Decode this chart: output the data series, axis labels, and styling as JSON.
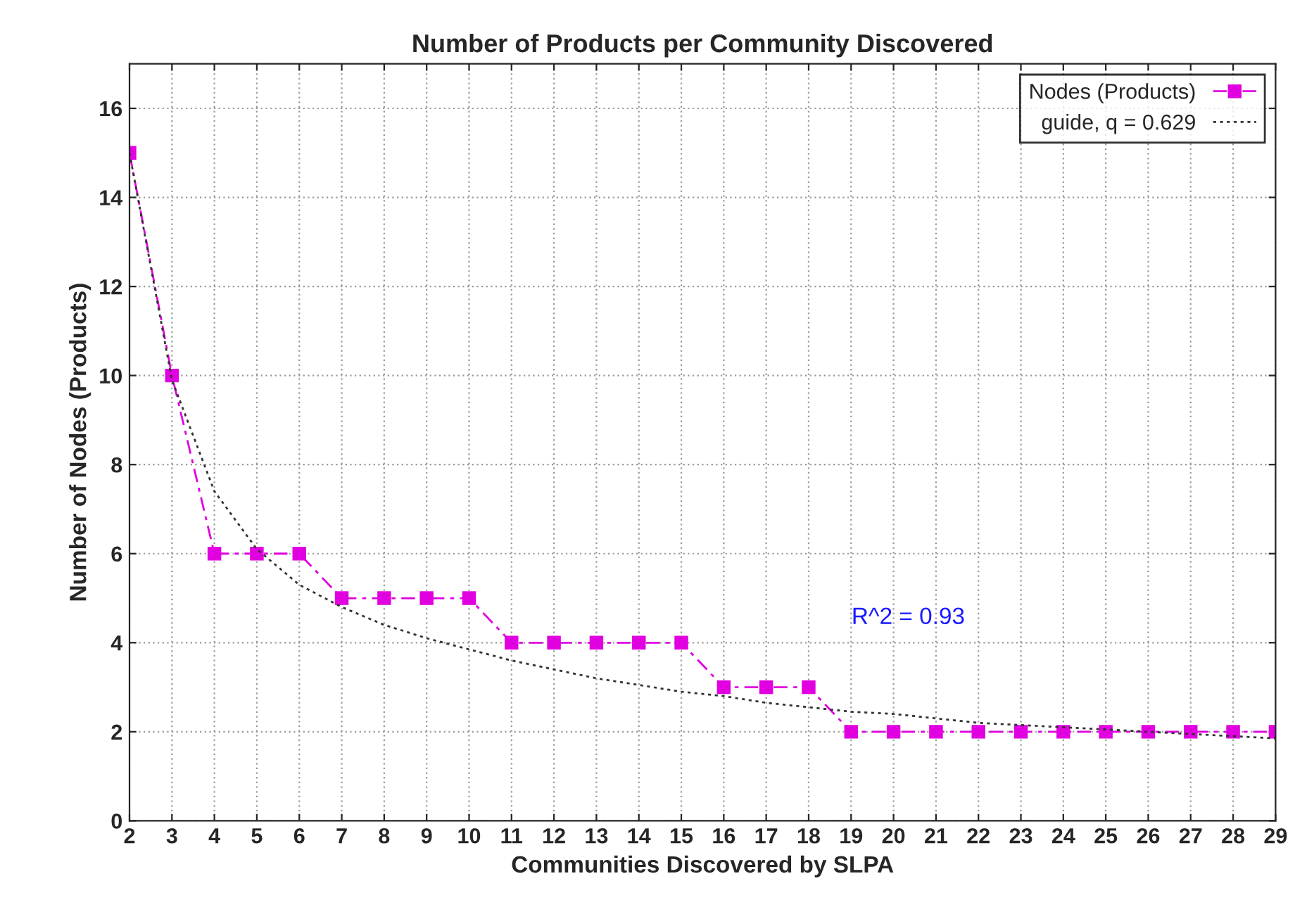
{
  "chart_data": {
    "type": "line",
    "title": "Number of Products per Community Discovered",
    "xlabel": "Communities Discovered by SLPA",
    "ylabel": "Number of Nodes (Products)",
    "x": [
      2,
      3,
      4,
      5,
      6,
      7,
      8,
      9,
      10,
      11,
      12,
      13,
      14,
      15,
      16,
      17,
      18,
      19,
      20,
      21,
      22,
      23,
      24,
      25,
      26,
      27,
      28,
      29
    ],
    "series": [
      {
        "name": "Nodes (Products)",
        "color": "#e000e0",
        "marker": "square",
        "line_style": "dashed",
        "values": [
          15,
          10,
          6,
          6,
          6,
          5,
          5,
          5,
          5,
          4,
          4,
          4,
          4,
          4,
          3,
          3,
          3,
          2,
          2,
          2,
          2,
          2,
          2,
          2,
          2,
          2,
          2,
          2
        ]
      },
      {
        "name": "guide, q = 0.629",
        "color": "#333333",
        "marker": "none",
        "line_style": "dotted",
        "values": [
          15,
          9.9,
          7.4,
          6.1,
          5.3,
          4.8,
          4.4,
          4.1,
          3.85,
          3.6,
          3.4,
          3.2,
          3.05,
          2.9,
          2.8,
          2.65,
          2.55,
          2.45,
          2.4,
          2.3,
          2.2,
          2.15,
          2.1,
          2.05,
          2.0,
          1.95,
          1.9,
          1.85
        ]
      }
    ],
    "xlim": [
      2,
      29
    ],
    "xticks": [
      2,
      3,
      4,
      5,
      6,
      7,
      8,
      9,
      10,
      11,
      12,
      13,
      14,
      15,
      16,
      17,
      18,
      19,
      20,
      21,
      22,
      23,
      24,
      25,
      26,
      27,
      28,
      29
    ],
    "ylim": [
      0,
      17
    ],
    "yticks": [
      0,
      2,
      4,
      6,
      8,
      10,
      12,
      14,
      16
    ],
    "grid": true,
    "legend": "top right",
    "annotations": [
      "R^2 = 0.93"
    ]
  }
}
